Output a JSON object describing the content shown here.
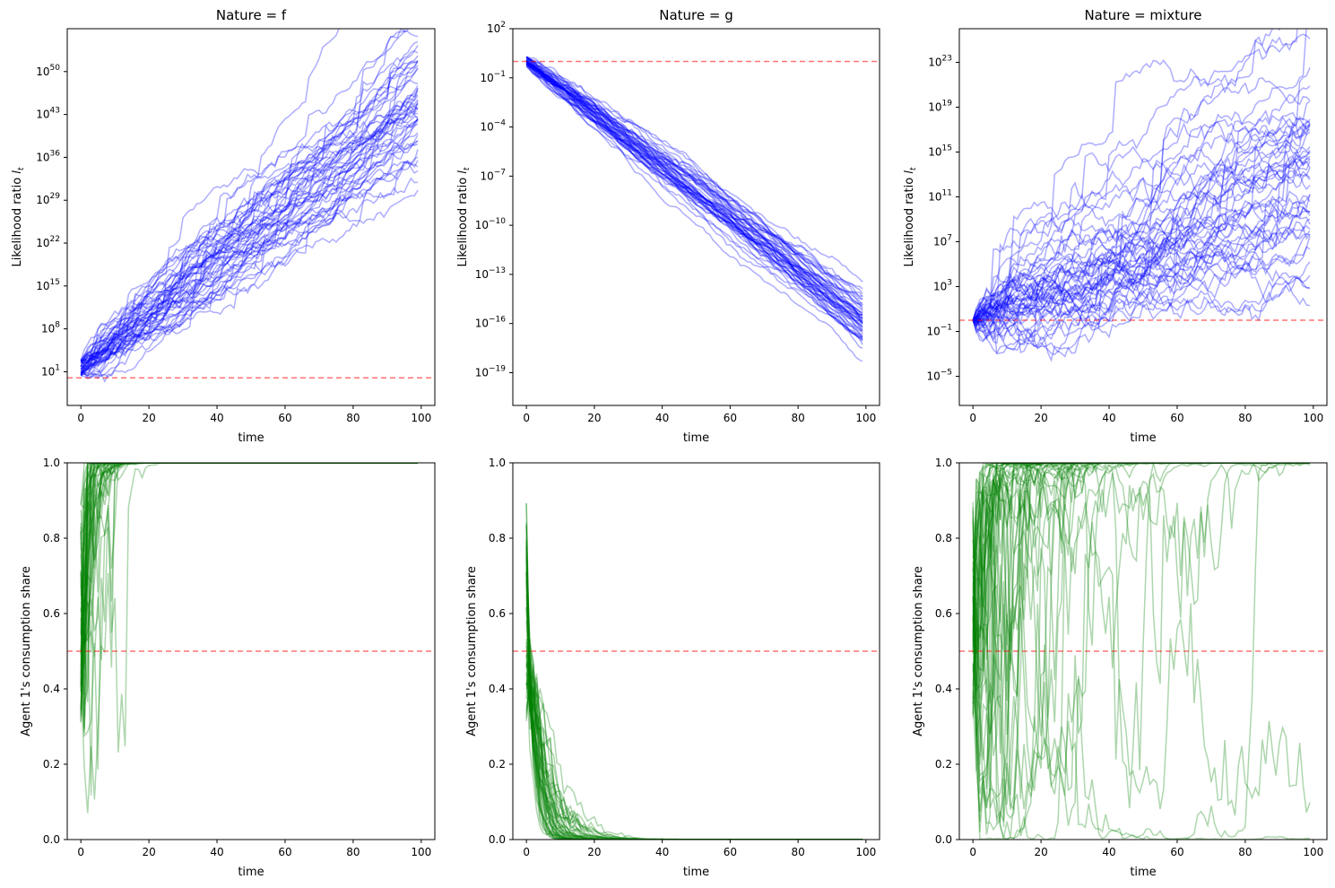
{
  "figure": {
    "colors": {
      "likelihood_paths": "#0000ff",
      "consumption_paths": "#008000",
      "reference_line": "#ff0000"
    }
  },
  "chart_data": [
    {
      "type": "line",
      "title": "Nature = f",
      "xlabel": "time",
      "ylabel": "Likelihood ratio l_t",
      "yscale": "log",
      "xlim": [
        -4,
        104
      ],
      "ylim_log10": [
        -4.5,
        57
      ],
      "xticks": [
        0,
        20,
        40,
        60,
        80,
        100
      ],
      "ytick_exponents": [
        1,
        8,
        15,
        22,
        29,
        36,
        43,
        50
      ],
      "reference_line_y": 1,
      "n_paths": 50,
      "path_length": 100,
      "path_endpoint_range_log10": [
        13,
        52
      ],
      "note_values": "50 simulated paths; log10 likelihood ratio starting near 0-3 and ending between about 13 and 52"
    },
    {
      "type": "line",
      "title": "Nature = g",
      "xlabel": "time",
      "ylabel": "Likelihood ratio l_t",
      "yscale": "log",
      "xlim": [
        -4,
        104
      ],
      "ylim_log10": [
        -21,
        2
      ],
      "xticks": [
        0,
        20,
        40,
        60,
        80,
        100
      ],
      "ytick_exponents": [
        -19,
        -16,
        -13,
        -10,
        -7,
        -4,
        -1,
        2
      ],
      "reference_line_y": 1,
      "n_paths": 50,
      "path_length": 100,
      "path_endpoint_range_log10": [
        -20.5,
        -11
      ],
      "note_values": "50 simulated paths; log10 likelihood ratio starting near 0 and declining to between about -20.5 and -11"
    },
    {
      "type": "line",
      "title": "Nature = mixture",
      "xlabel": "time",
      "ylabel": "Likelihood ratio l_t",
      "yscale": "log",
      "xlim": [
        -4,
        104
      ],
      "ylim_log10": [
        -7.6,
        26
      ],
      "xticks": [
        0,
        20,
        40,
        60,
        80,
        100
      ],
      "ytick_exponents": [
        -5,
        -1,
        3,
        7,
        11,
        15,
        19,
        23
      ],
      "reference_line_y": 1,
      "n_paths": 50,
      "path_length": 100,
      "path_endpoint_range_log10": [
        -6,
        24
      ],
      "note_values": "50 simulated paths; log10 likelihood ratio starting near 0 and ending between about -6 and 24"
    },
    {
      "type": "line",
      "title": "",
      "xlabel": "time",
      "ylabel": "Agent 1's consumption share",
      "xlim": [
        -4,
        104
      ],
      "ylim": [
        0,
        1
      ],
      "xticks": [
        0,
        20,
        40,
        60,
        80,
        100
      ],
      "yticks": [
        "0.0",
        "0.2",
        "0.4",
        "0.6",
        "0.8",
        "1.0"
      ],
      "reference_line_y": 0.5,
      "n_paths": 50,
      "path_length": 100,
      "behavior": "shares start between 0.3 and 0.9 and converge to 1.0 within about 25 periods"
    },
    {
      "type": "line",
      "title": "",
      "xlabel": "time",
      "ylabel": "Agent 1's consumption share",
      "xlim": [
        -4,
        104
      ],
      "ylim": [
        0,
        1
      ],
      "xticks": [
        0,
        20,
        40,
        60,
        80,
        100
      ],
      "yticks": [
        "0.0",
        "0.2",
        "0.4",
        "0.6",
        "0.8",
        "1.0"
      ],
      "reference_line_y": 0.5,
      "n_paths": 50,
      "path_length": 100,
      "behavior": "shares start between 0.3 and 0.9 and decay to 0.0 within about 30 periods"
    },
    {
      "type": "line",
      "title": "",
      "xlabel": "time",
      "ylabel": "Agent 1's consumption share",
      "xlim": [
        -4,
        104
      ],
      "ylim": [
        0,
        1
      ],
      "xticks": [
        0,
        20,
        40,
        60,
        80,
        100
      ],
      "yticks": [
        "0.0",
        "0.2",
        "0.4",
        "0.6",
        "0.8",
        "1.0"
      ],
      "reference_line_y": 0.5,
      "n_paths": 50,
      "path_length": 100,
      "behavior": "shares fluctuate widely between 0.0 and 1.0 throughout the horizon, most spending time near 1.0"
    }
  ]
}
